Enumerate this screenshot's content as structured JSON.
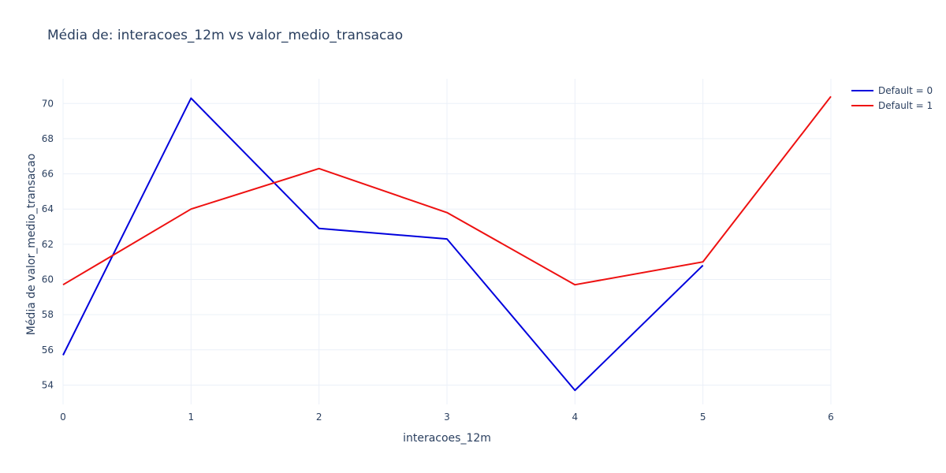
{
  "chart_data": {
    "type": "line",
    "title": "Média de: interacoes_12m vs valor_medio_transacao",
    "xlabel": "interacoes_12m",
    "ylabel": "Média de valor_medio_transacao",
    "x": [
      0,
      1,
      2,
      3,
      4,
      5,
      6
    ],
    "xlim": [
      0,
      6
    ],
    "ylim": [
      52.9,
      71.4
    ],
    "xticks": [
      0,
      1,
      2,
      3,
      4,
      5,
      6
    ],
    "yticks": [
      54,
      56,
      58,
      60,
      62,
      64,
      66,
      68,
      70
    ],
    "grid": true,
    "legend_position": "top-right",
    "series": [
      {
        "name": "Default = 0",
        "color": "#0000dd",
        "x": [
          0,
          1,
          2,
          3,
          4,
          5
        ],
        "values": [
          55.7,
          70.3,
          62.9,
          62.3,
          53.7,
          60.8
        ]
      },
      {
        "name": "Default = 1",
        "color": "#ee1111",
        "x": [
          0,
          1,
          2,
          3,
          4,
          5,
          6
        ],
        "values": [
          59.7,
          64.0,
          66.3,
          63.8,
          59.7,
          61.0,
          70.4
        ]
      }
    ]
  }
}
